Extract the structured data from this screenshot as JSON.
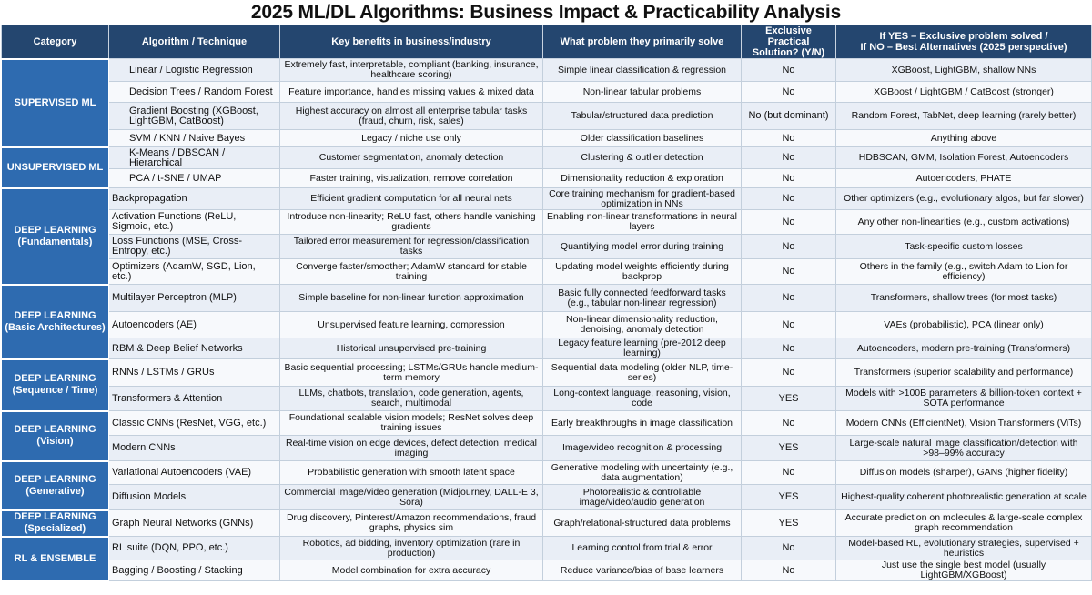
{
  "title": "2025 ML/DL Algorithms: Business Impact & Practicability Analysis",
  "headers": [
    "Category",
    "Algorithm / Technique",
    "Key benefits in business/industry",
    "What problem they primarily solve",
    "Exclusive Practical Solution? (Y/N)",
    "If YES – Exclusive problem solved / If NO – Best Alternatives (2025 perspective)"
  ],
  "groups": [
    {
      "category": "SUPERVISED ML",
      "rows": [
        {
          "alg": "Linear / Logistic Regression",
          "benefit": "Extremely fast, interpretable, compliant (banking, insurance, healthcare scoring)",
          "problem": "Simple linear classification & regression",
          "excl": "No",
          "alt": "XGBoost, LightGBM, shallow NNs"
        },
        {
          "alg": "Decision Trees / Random Forest",
          "benefit": "Feature importance, handles missing values & mixed data",
          "problem": "Non-linear tabular problems",
          "excl": "No",
          "alt": "XGBoost / LightGBM / CatBoost (stronger)"
        },
        {
          "alg": "Gradient Boosting (XGBoost, LightGBM, CatBoost)",
          "benefit": "Highest accuracy on almost all enterprise tabular tasks (fraud, churn, risk, sales)",
          "problem": "Tabular/structured data prediction",
          "excl": "No (but dominant)",
          "alt": "Random Forest, TabNet, deep learning (rarely better)"
        },
        {
          "alg": "SVM / KNN / Naive Bayes",
          "benefit": "Legacy / niche use only",
          "problem": "Older classification baselines",
          "excl": "No",
          "alt": "Anything above"
        }
      ]
    },
    {
      "category": "UNSUPERVISED ML",
      "rows": [
        {
          "alg": "K-Means / DBSCAN / Hierarchical",
          "benefit": "Customer segmentation, anomaly detection",
          "problem": "Clustering & outlier detection",
          "excl": "No",
          "alt": "HDBSCAN, GMM, Isolation Forest, Autoencoders"
        },
        {
          "alg": "PCA / t-SNE / UMAP",
          "benefit": "Faster training, visualization, remove correlation",
          "problem": "Dimensionality reduction & exploration",
          "excl": "No",
          "alt": "Autoencoders, PHATE"
        }
      ]
    },
    {
      "category": "DEEP LEARNING (Fundamentals)",
      "rows": [
        {
          "alg": "Backpropagation",
          "benefit": "Efficient gradient computation for all neural nets",
          "problem": "Core training mechanism for gradient-based optimization in NNs",
          "excl": "No",
          "alt": "Other optimizers (e.g., evolutionary algos, but far slower)"
        },
        {
          "alg": "Activation Functions (ReLU, Sigmoid, etc.)",
          "benefit": "Introduce non-linearity; ReLU fast, others handle vanishing gradients",
          "problem": "Enabling non-linear transformations in neural layers",
          "excl": "No",
          "alt": "Any other non-linearities (e.g., custom activations)"
        },
        {
          "alg": "Loss Functions (MSE, Cross-Entropy, etc.)",
          "benefit": "Tailored error measurement for regression/classification tasks",
          "problem": "Quantifying model error during training",
          "excl": "No",
          "alt": "Task-specific custom losses"
        },
        {
          "alg": "Optimizers (AdamW, SGD, Lion, etc.)",
          "benefit": "Converge faster/smoother; AdamW standard for stable training",
          "problem": "Updating model weights efficiently during backprop",
          "excl": "No",
          "alt": "Others in the family (e.g., switch Adam to Lion for efficiency)"
        }
      ]
    },
    {
      "category": "DEEP LEARNING (Basic Architectures)",
      "rows": [
        {
          "alg": "Multilayer Perceptron (MLP)",
          "benefit": "Simple baseline for non-linear function approximation",
          "problem": "Basic fully connected feedforward tasks (e.g., tabular non-linear regression)",
          "excl": "No",
          "alt": "Transformers, shallow trees (for most tasks)"
        },
        {
          "alg": "Autoencoders (AE)",
          "benefit": "Unsupervised feature learning, compression",
          "problem": "Non-linear dimensionality reduction, denoising, anomaly detection",
          "excl": "No",
          "alt": "VAEs (probabilistic), PCA (linear only)"
        },
        {
          "alg": "RBM & Deep Belief Networks",
          "benefit": "Historical unsupervised pre-training",
          "problem": "Legacy feature learning (pre-2012 deep learning)",
          "excl": "No",
          "alt": "Autoencoders, modern pre-training (Transformers)"
        }
      ]
    },
    {
      "category": "DEEP LEARNING (Sequence / Time)",
      "rows": [
        {
          "alg": "RNNs / LSTMs / GRUs",
          "benefit": "Basic sequential processing; LSTMs/GRUs handle medium-term memory",
          "problem": "Sequential data modeling (older NLP, time-series)",
          "excl": "No",
          "alt": "Transformers (superior scalability and performance)"
        },
        {
          "alg": "Transformers & Attention",
          "benefit": "LLMs, chatbots, translation, code generation, agents, search, multimodal",
          "problem": "Long-context language, reasoning, vision, code",
          "excl": "YES",
          "alt": "Models with >100B parameters & billion-token context + SOTA performance"
        }
      ]
    },
    {
      "category": "DEEP LEARNING (Vision)",
      "rows": [
        {
          "alg": "Classic CNNs (ResNet, VGG, etc.)",
          "benefit": "Foundational scalable vision models; ResNet solves deep training issues",
          "problem": "Early breakthroughs in image classification",
          "excl": "No",
          "alt": "Modern CNNs (EfficientNet), Vision Transformers (ViTs)"
        },
        {
          "alg": "Modern CNNs",
          "benefit": "Real-time vision on edge devices, defect detection, medical imaging",
          "problem": "Image/video recognition & processing",
          "excl": "YES",
          "alt": "Large-scale natural image classification/detection with >98–99% accuracy"
        }
      ]
    },
    {
      "category": "DEEP LEARNING (Generative)",
      "rows": [
        {
          "alg": "Variational Autoencoders (VAE)",
          "benefit": "Probabilistic generation with smooth latent space",
          "problem": "Generative modeling with uncertainty (e.g., data augmentation)",
          "excl": "No",
          "alt": "Diffusion models (sharper), GANs (higher fidelity)"
        },
        {
          "alg": "Diffusion Models",
          "benefit": "Commercial image/video generation (Midjourney, DALL-E 3, Sora)",
          "problem": "Photorealistic & controllable image/video/audio generation",
          "excl": "YES",
          "alt": "Highest-quality coherent photorealistic generation at scale"
        }
      ]
    },
    {
      "category": "DEEP LEARNING (Specialized)",
      "rows": [
        {
          "alg": "Graph Neural Networks (GNNs)",
          "benefit": "Drug discovery, Pinterest/Amazon recommendations, fraud graphs, physics sim",
          "problem": "Graph/relational-structured data problems",
          "excl": "YES",
          "alt": "Accurate prediction on molecules & large-scale complex graph recommendation"
        }
      ]
    },
    {
      "category": "RL & ENSEMBLE",
      "rows": [
        {
          "alg": "RL suite (DQN, PPO, etc.)",
          "benefit": "Robotics, ad bidding, inventory optimization (rare in production)",
          "problem": "Learning control from trial & error",
          "excl": "No",
          "alt": "Model-based RL, evolutionary strategies, supervised + heuristics"
        },
        {
          "alg": "Bagging / Boosting / Stacking",
          "benefit": "Model combination for extra accuracy",
          "problem": "Reduce variance/bias of base learners",
          "excl": "No",
          "alt": "Just use the single best model (usually LightGBM/XGBoost)"
        }
      ]
    }
  ]
}
